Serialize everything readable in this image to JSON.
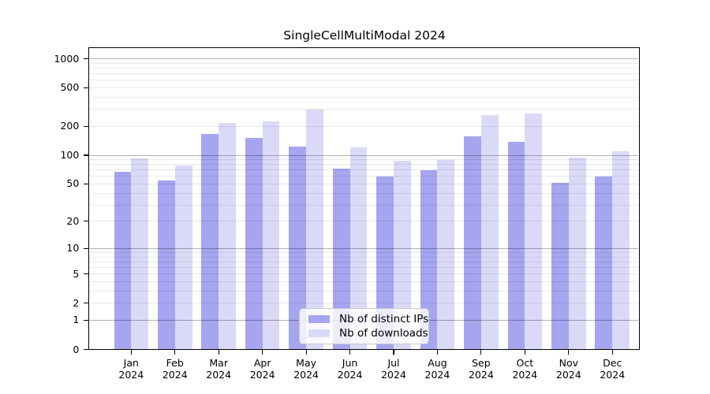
{
  "chart_data": {
    "type": "bar",
    "title": "SingleCellMultiModal 2024",
    "categories": [
      "Jan 2024",
      "Feb 2024",
      "Mar 2024",
      "Apr 2024",
      "May 2024",
      "Jun 2024",
      "Jul 2024",
      "Aug 2024",
      "Sep 2024",
      "Oct 2024",
      "Nov 2024",
      "Dec 2024"
    ],
    "x_tick_months": [
      "Jan",
      "Feb",
      "Mar",
      "Apr",
      "May",
      "Jun",
      "Jul",
      "Aug",
      "Sep",
      "Oct",
      "Nov",
      "Dec"
    ],
    "x_tick_year": "2024",
    "series": [
      {
        "name": "Nb of distinct IPs",
        "color": "#a5a5f0",
        "values": [
          67,
          54,
          165,
          152,
          123,
          72,
          60,
          70,
          156,
          139,
          51,
          60
        ]
      },
      {
        "name": "Nb of downloads",
        "color": "#dadaf8",
        "values": [
          92,
          78,
          215,
          225,
          296,
          120,
          88,
          89,
          261,
          270,
          94,
          109
        ]
      }
    ],
    "yscale": "log1p",
    "ylim": [
      0,
      1300
    ],
    "yticks": [
      0,
      1,
      2,
      5,
      10,
      20,
      50,
      100,
      200,
      500,
      1000
    ],
    "major_gridlines": [
      1,
      10,
      100,
      1000
    ],
    "minor_gridlines": [
      2,
      3,
      4,
      5,
      6,
      7,
      8,
      9,
      20,
      30,
      40,
      50,
      60,
      70,
      80,
      90,
      200,
      300,
      400,
      500,
      600,
      700,
      800,
      900
    ],
    "grid": true,
    "legend_position": "bottom-center",
    "colors": {
      "background": "#ffffff",
      "axis": "#000000",
      "text": "#000000",
      "major_grid": "rgba(0,0,0,0.30)",
      "minor_grid": "rgba(0,0,0,0.085)",
      "legend_background": "rgba(255,255,255,0.8)",
      "legend_border": "#c9c9c9"
    }
  }
}
